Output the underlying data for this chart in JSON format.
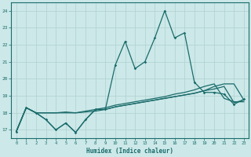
{
  "xlabel": "Humidex (Indice chaleur)",
  "xlim": [
    -0.5,
    23.5
  ],
  "ylim": [
    16.5,
    24.5
  ],
  "xticks": [
    0,
    1,
    2,
    3,
    4,
    5,
    6,
    7,
    8,
    9,
    10,
    11,
    12,
    13,
    14,
    15,
    16,
    17,
    18,
    19,
    20,
    21,
    22,
    23
  ],
  "yticks": [
    17,
    18,
    19,
    20,
    21,
    22,
    23,
    24
  ],
  "bg_color": "#cce8e8",
  "grid_color": "#b0d0d0",
  "line_color": "#1a6b6b",
  "line1_x": [
    0,
    1,
    2,
    3,
    4,
    5,
    6,
    7,
    8,
    9,
    10,
    11,
    12,
    13,
    14,
    15,
    16,
    17,
    18,
    19,
    20,
    21,
    22,
    23
  ],
  "line1_y": [
    16.9,
    18.3,
    18.0,
    17.6,
    17.0,
    17.4,
    16.85,
    17.6,
    18.2,
    18.2,
    20.8,
    22.2,
    20.6,
    21.0,
    22.4,
    24.0,
    22.4,
    22.7,
    19.8,
    19.2,
    19.2,
    19.1,
    18.5,
    18.8
  ],
  "line1_markers": [
    0,
    1,
    2,
    3,
    4,
    5,
    6,
    7,
    8,
    9,
    10,
    11,
    12,
    13,
    14,
    15,
    16,
    17,
    18,
    19,
    20,
    21,
    22,
    23
  ],
  "line2_x": [
    0,
    1,
    2,
    3,
    4,
    5,
    6,
    7,
    8,
    9,
    10,
    11,
    12,
    13,
    14,
    15,
    16,
    17,
    18,
    19,
    20,
    21,
    22,
    23
  ],
  "line2_y": [
    16.9,
    18.3,
    18.0,
    18.0,
    18.0,
    18.0,
    18.0,
    18.05,
    18.1,
    18.2,
    18.35,
    18.45,
    18.55,
    18.65,
    18.75,
    18.85,
    18.95,
    19.05,
    19.15,
    19.3,
    19.55,
    19.7,
    19.7,
    18.75
  ],
  "line3_x": [
    0,
    1,
    2,
    3,
    4,
    5,
    6,
    7,
    8,
    9,
    10,
    11,
    12,
    13,
    14,
    15,
    16,
    17,
    18,
    19,
    20,
    21,
    22,
    23
  ],
  "line3_y": [
    16.9,
    18.3,
    18.0,
    18.0,
    18.0,
    18.05,
    18.0,
    18.1,
    18.2,
    18.3,
    18.45,
    18.55,
    18.65,
    18.75,
    18.85,
    18.95,
    19.1,
    19.2,
    19.35,
    19.55,
    19.7,
    18.85,
    18.65,
    18.65
  ],
  "line4_x": [
    0,
    1,
    2,
    3,
    4,
    5,
    6,
    7,
    8,
    9,
    10,
    11,
    12,
    13,
    14,
    15,
    16,
    17,
    18,
    19,
    20,
    21,
    22,
    23
  ],
  "line4_y": [
    16.9,
    18.3,
    18.0,
    17.6,
    17.0,
    17.4,
    16.85,
    17.6,
    18.2,
    18.2,
    18.35,
    18.45,
    18.55,
    18.65,
    18.75,
    18.85,
    18.95,
    19.05,
    19.15,
    19.3,
    19.4,
    19.55,
    18.6,
    18.75
  ]
}
